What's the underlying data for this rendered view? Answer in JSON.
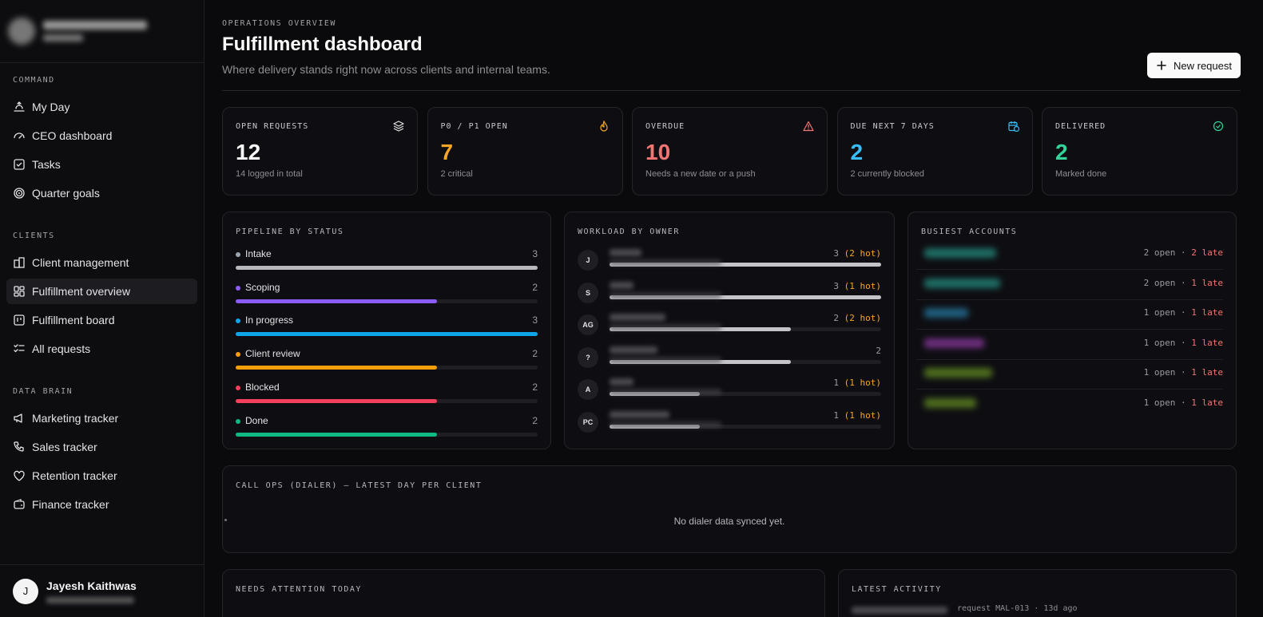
{
  "sidebar": {
    "sections": [
      {
        "title": "COMMAND",
        "items": [
          {
            "label": "My Day",
            "icon": "sunrise-icon"
          },
          {
            "label": "CEO dashboard",
            "icon": "gauge-icon"
          },
          {
            "label": "Tasks",
            "icon": "checkbox-icon"
          },
          {
            "label": "Quarter goals",
            "icon": "target-icon"
          }
        ]
      },
      {
        "title": "CLIENTS",
        "items": [
          {
            "label": "Client management",
            "icon": "building-icon"
          },
          {
            "label": "Fulfillment overview",
            "icon": "grid-icon",
            "active": true
          },
          {
            "label": "Fulfillment board",
            "icon": "kanban-icon"
          },
          {
            "label": "All requests",
            "icon": "list-checks-icon"
          }
        ]
      },
      {
        "title": "DATA BRAIN",
        "items": [
          {
            "label": "Marketing tracker",
            "icon": "megaphone-icon"
          },
          {
            "label": "Sales tracker",
            "icon": "phone-icon"
          },
          {
            "label": "Retention tracker",
            "icon": "heart-handshake-icon"
          },
          {
            "label": "Finance tracker",
            "icon": "wallet-icon"
          }
        ]
      }
    ],
    "user": {
      "initial": "J",
      "name": "Jayesh Kaithwas"
    }
  },
  "header": {
    "eyebrow": "OPERATIONS OVERVIEW",
    "title": "Fulfillment dashboard",
    "subtitle": "Where delivery stands right now across clients and internal teams.",
    "new_request_label": "New request"
  },
  "kpis": [
    {
      "label": "OPEN REQUESTS",
      "value": "12",
      "sub": "14 logged in total",
      "color": "#fafafa",
      "icon": "layers-icon"
    },
    {
      "label": "P0 / P1 OPEN",
      "value": "7",
      "sub": "2 critical",
      "color": "#f5a623",
      "icon": "flame-icon"
    },
    {
      "label": "OVERDUE",
      "value": "10",
      "sub": "Needs a new date or a push",
      "color": "#f47373",
      "icon": "alert-triangle-icon"
    },
    {
      "label": "DUE NEXT 7 DAYS",
      "value": "2",
      "sub": "2 currently blocked",
      "color": "#38bdf8",
      "icon": "calendar-clock-icon"
    },
    {
      "label": "DELIVERED",
      "value": "2",
      "sub": "Marked done",
      "color": "#34d399",
      "icon": "check-circle-icon"
    }
  ],
  "pipeline": {
    "title": "PIPELINE BY STATUS",
    "max": 3,
    "rows": [
      {
        "name": "Intake",
        "count": 3,
        "color": "#b8b8bd",
        "dot": "#9ca3af"
      },
      {
        "name": "Scoping",
        "count": 2,
        "color": "#8b5cf6",
        "dot": "#8b5cf6"
      },
      {
        "name": "In progress",
        "count": 3,
        "color": "#0ea5e9",
        "dot": "#0ea5e9"
      },
      {
        "name": "Client review",
        "count": 2,
        "color": "#f59e0b",
        "dot": "#f59e0b"
      },
      {
        "name": "Blocked",
        "count": 2,
        "color": "#f43f5e",
        "dot": "#f43f5e"
      },
      {
        "name": "Done",
        "count": 2,
        "color": "#10b981",
        "dot": "#10b981"
      }
    ]
  },
  "workload": {
    "title": "WORKLOAD BY OWNER",
    "max": 3,
    "rows": [
      {
        "initials": "J",
        "count": "3",
        "hot": "(2 hot)",
        "value": 3
      },
      {
        "initials": "S",
        "count": "3",
        "hot": "(1 hot)",
        "value": 3
      },
      {
        "initials": "AG",
        "count": "2",
        "hot": "(2 hot)",
        "value": 2
      },
      {
        "initials": "?",
        "count": "2",
        "hot": "",
        "value": 2
      },
      {
        "initials": "A",
        "count": "1",
        "hot": "(1 hot)",
        "value": 1
      },
      {
        "initials": "PC",
        "count": "1",
        "hot": "(1 hot)",
        "value": 1
      }
    ]
  },
  "accounts": {
    "title": "BUSIEST ACCOUNTS",
    "rows": [
      {
        "open": "2 open",
        "late": "2 late",
        "color": "#1f6f66"
      },
      {
        "open": "2 open",
        "late": "1 late",
        "color": "#1f6f66"
      },
      {
        "open": "1 open",
        "late": "1 late",
        "color": "#1f5f7f"
      },
      {
        "open": "1 open",
        "late": "1 late",
        "color": "#6f2f7f"
      },
      {
        "open": "1 open",
        "late": "1 late",
        "color": "#4f6f1f"
      },
      {
        "open": "1 open",
        "late": "1 late",
        "color": "#4f6f1f"
      }
    ],
    "separator": "·"
  },
  "callops": {
    "title": "CALL OPS (DIALER) — LATEST DAY PER CLIENT",
    "empty": "No dialer data synced yet."
  },
  "attention": {
    "title": "NEEDS ATTENTION TODAY"
  },
  "activity": {
    "title": "LATEST ACTIVITY",
    "first_item": "request MAL-013 · 13d ago"
  }
}
